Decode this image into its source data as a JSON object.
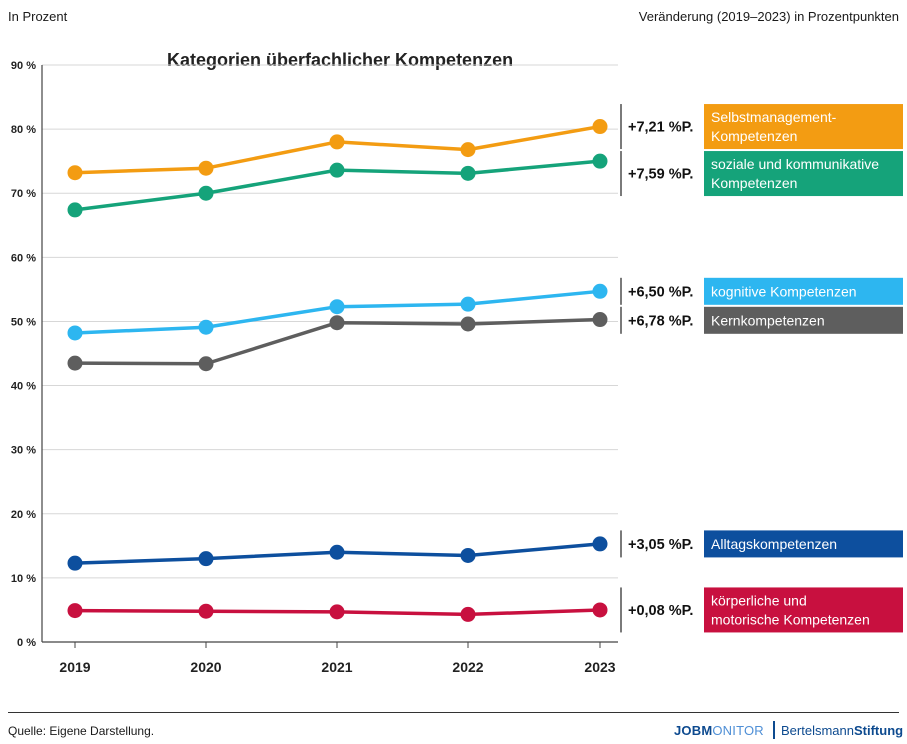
{
  "header": {
    "unit_note": "In Prozent",
    "change_note": "Veränderung (2019–2023) in Prozentpunkten"
  },
  "footer": {
    "source": "Quelle: Eigene Darstellung.",
    "logo_jobmonitor_bold": "JOBM",
    "logo_jobmonitor_thin": "ONITOR",
    "logo_bertelsmann_regular": "Bertelsmann",
    "logo_bertelsmann_bold": "Stiftung"
  },
  "chart_data": {
    "type": "line",
    "title": "Kategorien überfachlicher Kompetenzen",
    "x": [
      "2019",
      "2020",
      "2021",
      "2022",
      "2023"
    ],
    "y_ticks": [
      "0 %",
      "10 %",
      "20 %",
      "30 %",
      "40 %",
      "50 %",
      "60 %",
      "70 %",
      "80 %",
      "90 %"
    ],
    "ylim": [
      0,
      90
    ],
    "grid": true,
    "series": [
      {
        "name": "Selbstmanagement-Kompetenzen",
        "label_lines": [
          "Selbstmanagement-",
          "Kompetenzen"
        ],
        "change": "+7,21 %P.",
        "color": "#f39c12",
        "values": [
          73.2,
          73.9,
          78.0,
          76.8,
          80.4
        ]
      },
      {
        "name": "soziale und kommunikative Kompetenzen",
        "label_lines": [
          "soziale und kommunikative",
          "Kompetenzen"
        ],
        "change": "+7,59 %P.",
        "color": "#15a37a",
        "values": [
          67.4,
          70.0,
          73.6,
          73.1,
          75.0
        ]
      },
      {
        "name": "kognitive Kompetenzen",
        "label_lines": [
          "kognitive Kompetenzen"
        ],
        "change": "+6,50 %P.",
        "color": "#2db6f0",
        "values": [
          48.2,
          49.1,
          52.3,
          52.7,
          54.7
        ]
      },
      {
        "name": "Kernkompetenzen",
        "label_lines": [
          "Kernkompetenzen"
        ],
        "change": "+6,78 %P.",
        "color": "#5e5e5e",
        "values": [
          43.5,
          43.4,
          49.8,
          49.6,
          50.3
        ]
      },
      {
        "name": "Alltagskompetenzen",
        "label_lines": [
          "Alltagskompetenzen"
        ],
        "change": "+3,05 %P.",
        "color": "#0d4f9e",
        "values": [
          12.3,
          13.0,
          14.0,
          13.5,
          15.3
        ]
      },
      {
        "name": "körperliche und motorische Kompetenzen",
        "label_lines": [
          "körperliche und",
          "motorische Kompetenzen"
        ],
        "change": "+0,08 %P.",
        "color": "#c8103f",
        "values": [
          4.9,
          4.8,
          4.7,
          4.3,
          5.0
        ]
      }
    ]
  }
}
